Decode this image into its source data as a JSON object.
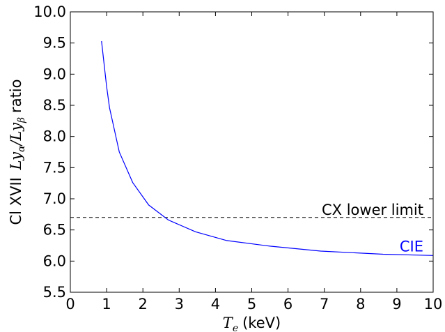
{
  "chart_data": {
    "type": "line",
    "title": "",
    "xlabel": {
      "symbol": "T",
      "subscript": "e",
      "unit": "(keV)"
    },
    "ylabel": {
      "prefix": "Cl XVII",
      "num_symbol": "Ly",
      "num_sub": "α",
      "slash": "/",
      "den_symbol": "Ly",
      "den_sub": "β",
      "suffix": "ratio"
    },
    "xlim": [
      0,
      10
    ],
    "ylim": [
      5.5,
      10.0
    ],
    "xticks": [
      0,
      1,
      2,
      3,
      4,
      5,
      6,
      7,
      8,
      9,
      10
    ],
    "yticks": [
      "5.5",
      "6.0",
      "6.5",
      "7.0",
      "7.5",
      "8.0",
      "8.5",
      "9.0",
      "9.5",
      "10.0"
    ],
    "grid": false,
    "series": [
      {
        "name": "CIE",
        "color": "#0000ff",
        "x": [
          0.86,
          1.0,
          1.08,
          1.35,
          1.72,
          2.16,
          2.7,
          3.45,
          4.31,
          5.5,
          6.9,
          8.62,
          10.0
        ],
        "y": [
          9.53,
          8.8,
          8.46,
          7.75,
          7.26,
          6.9,
          6.66,
          6.47,
          6.33,
          6.24,
          6.16,
          6.11,
          6.09
        ]
      }
    ],
    "reference_lines": [
      {
        "label": "CX lower limit",
        "y": 6.7,
        "style": "dashed",
        "color": "#000000"
      }
    ]
  }
}
